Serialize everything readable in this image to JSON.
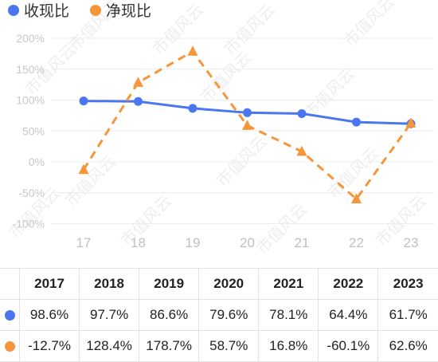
{
  "chart_data": {
    "type": "line",
    "legend_position": "top-left",
    "grid": true,
    "categories": [
      "17",
      "18",
      "19",
      "20",
      "21",
      "22",
      "23"
    ],
    "yticks": [
      "200%",
      "150%",
      "100%",
      "50%",
      "0%",
      "-50%",
      "-100%"
    ],
    "ylim": [
      -100,
      200
    ],
    "series": [
      {
        "name": "收现比",
        "color": "#4a77f0",
        "style": "solid",
        "marker": "circle",
        "values": [
          98.6,
          97.7,
          86.6,
          79.6,
          78.1,
          64.4,
          61.7
        ]
      },
      {
        "name": "净现比",
        "color": "#f5963a",
        "style": "dashed",
        "marker": "triangle",
        "values": [
          -12.7,
          128.4,
          178.7,
          58.7,
          16.8,
          -60.1,
          62.6
        ]
      }
    ],
    "watermark": "市值风云"
  },
  "table": {
    "years": [
      "2017",
      "2018",
      "2019",
      "2020",
      "2021",
      "2022",
      "2023"
    ],
    "rows": [
      [
        "98.6%",
        "97.7%",
        "86.6%",
        "79.6%",
        "78.1%",
        "64.4%",
        "61.7%"
      ],
      [
        "-12.7%",
        "128.4%",
        "178.7%",
        "58.7%",
        "16.8%",
        "-60.1%",
        "62.6%"
      ]
    ]
  }
}
